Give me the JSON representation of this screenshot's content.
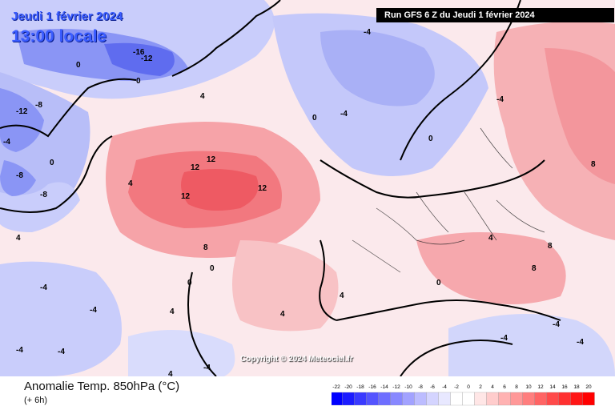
{
  "header": {
    "date": "Jeudi 1 février 2024",
    "time": "13:00 locale",
    "run": "Run GFS 6 Z du Jeudi 1 février 2024"
  },
  "footer": {
    "title": "Anomalie Temp. 850hPa (°C)",
    "subtitle": "(+ 6h)",
    "copyright": "Copyright © 2024 Meteociel.fr"
  },
  "legend": {
    "ticks": [
      "-22",
      "-20",
      "-18",
      "-16",
      "-14",
      "-12",
      "-10",
      "-8",
      "-6",
      "-4",
      "-2",
      "0",
      "2",
      "4",
      "6",
      "8",
      "10",
      "12",
      "14",
      "16",
      "18",
      "20"
    ],
    "colors": [
      "#0000ff",
      "#1c1cff",
      "#3a3aff",
      "#5454ff",
      "#6e6eff",
      "#8888ff",
      "#a2a2ff",
      "#bcbcff",
      "#d4d4ff",
      "#e8e8ff",
      "#ffffff",
      "#ffffff",
      "#ffe6e6",
      "#ffcccc",
      "#ffb2b2",
      "#ff9898",
      "#ff7e7e",
      "#ff6464",
      "#ff4a4a",
      "#ff3030",
      "#ff1616",
      "#ff0000"
    ]
  },
  "map_labels": [
    {
      "text": "-16"
    },
    {
      "text": "-12"
    },
    {
      "text": "-12"
    },
    {
      "text": "-8"
    },
    {
      "text": "-8"
    },
    {
      "text": "-8"
    },
    {
      "text": "-4"
    },
    {
      "text": "-4"
    },
    {
      "text": "-4"
    },
    {
      "text": "-4"
    },
    {
      "text": "-4"
    },
    {
      "text": "-4"
    },
    {
      "text": "-4"
    },
    {
      "text": "-4"
    },
    {
      "text": "-4"
    },
    {
      "text": "-4"
    },
    {
      "text": "-4"
    },
    {
      "text": "-4"
    },
    {
      "text": "0"
    },
    {
      "text": "0"
    },
    {
      "text": "0"
    },
    {
      "text": "0"
    },
    {
      "text": "0"
    },
    {
      "text": "0"
    },
    {
      "text": "0"
    },
    {
      "text": "0"
    },
    {
      "text": "4"
    },
    {
      "text": "4"
    },
    {
      "text": "4"
    },
    {
      "text": "4"
    },
    {
      "text": "4"
    },
    {
      "text": "4"
    },
    {
      "text": "4"
    },
    {
      "text": "4"
    },
    {
      "text": "8"
    },
    {
      "text": "8"
    },
    {
      "text": "8"
    },
    {
      "text": "8"
    },
    {
      "text": "12"
    },
    {
      "text": "12"
    },
    {
      "text": "12"
    },
    {
      "text": "12"
    }
  ],
  "colors": {
    "cold_strong": "#6e6eff",
    "cold_mild": "#bcbcff",
    "warm_mild": "#ffcccc",
    "warm_strong": "#ff6464",
    "coastline": "#000000"
  }
}
